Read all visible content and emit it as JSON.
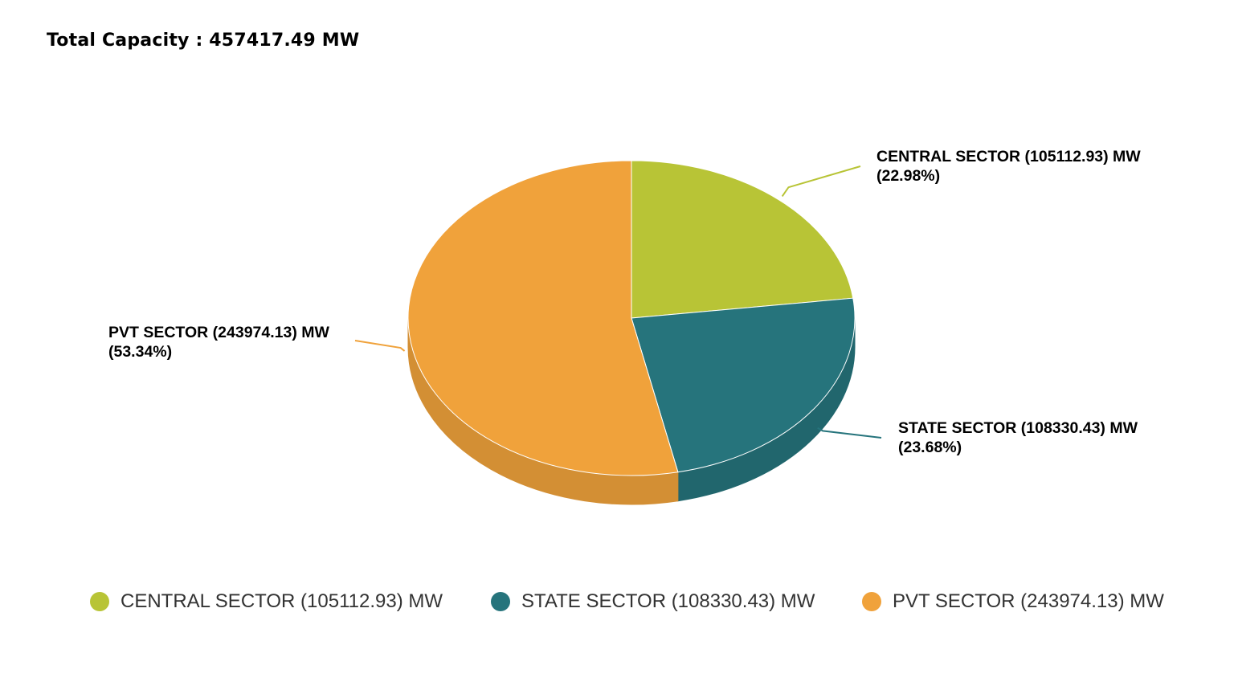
{
  "header": {
    "total_capacity_text": "Total Capacity : 457417.49 MW"
  },
  "chart_data": {
    "type": "pie",
    "title": "Total Capacity : 457417.49 MW",
    "three_d": true,
    "legend_placement": "bottom",
    "slices": [
      {
        "name": "CENTRAL SECTOR (105112.93) MW",
        "value": 105112.93,
        "percent": 22.98,
        "percent_text": "(22.98%)",
        "color": "#b8c436"
      },
      {
        "name": "STATE SECTOR (108330.43) MW",
        "value": 108330.43,
        "percent": 23.68,
        "percent_text": "(23.68%)",
        "color": "#26747c"
      },
      {
        "name": "PVT SECTOR (243974.13) MW",
        "value": 243974.13,
        "percent": 53.34,
        "percent_text": "(53.34%)",
        "color": "#f0a23b"
      }
    ]
  }
}
